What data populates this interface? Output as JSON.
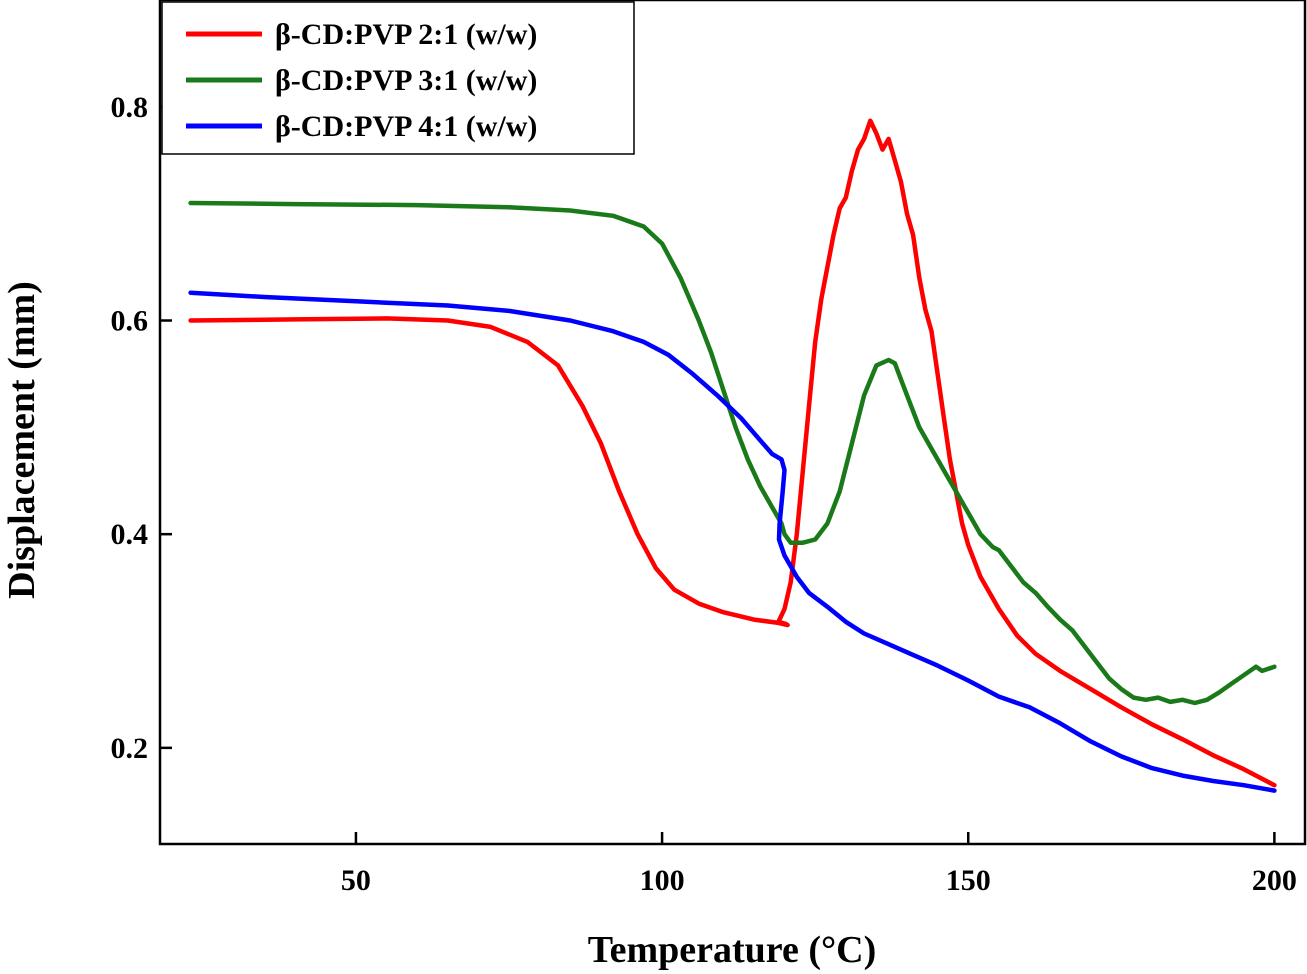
{
  "chart_data": {
    "type": "line",
    "title": "",
    "xlabel": "Temperature (°C)",
    "ylabel": "Displacement (mm)",
    "xlim": [
      18,
      205
    ],
    "ylim": [
      0.11,
      0.9
    ],
    "xticks": [
      50,
      100,
      150,
      200
    ],
    "yticks": [
      0.2,
      0.4,
      0.6,
      0.8
    ],
    "xtick_labels": [
      "50",
      "100",
      "150",
      "200"
    ],
    "ytick_labels": [
      "0.2",
      "0.4",
      "0.6",
      "0.8"
    ],
    "grid": false,
    "legend_position": "top-left",
    "series": [
      {
        "name": "β-CD:PVP 2:1 (w/w)",
        "color": "#ff0000",
        "points": [
          [
            23,
            0.6
          ],
          [
            40,
            0.601
          ],
          [
            55,
            0.602
          ],
          [
            65,
            0.6
          ],
          [
            72,
            0.594
          ],
          [
            78,
            0.58
          ],
          [
            83,
            0.558
          ],
          [
            87,
            0.52
          ],
          [
            90,
            0.485
          ],
          [
            93,
            0.44
          ],
          [
            96,
            0.4
          ],
          [
            99,
            0.368
          ],
          [
            102,
            0.348
          ],
          [
            106,
            0.335
          ],
          [
            110,
            0.327
          ],
          [
            115,
            0.32
          ],
          [
            119,
            0.317
          ],
          [
            120.5,
            0.315
          ],
          [
            120.2,
            0.316
          ],
          [
            119,
            0.318
          ],
          [
            120,
            0.33
          ],
          [
            121,
            0.355
          ],
          [
            122,
            0.4
          ],
          [
            123,
            0.46
          ],
          [
            124,
            0.52
          ],
          [
            125,
            0.58
          ],
          [
            126,
            0.62
          ],
          [
            128,
            0.68
          ],
          [
            129,
            0.705
          ],
          [
            130,
            0.715
          ],
          [
            131,
            0.74
          ],
          [
            132,
            0.76
          ],
          [
            133,
            0.77
          ],
          [
            134,
            0.787
          ],
          [
            135,
            0.775
          ],
          [
            136,
            0.76
          ],
          [
            137,
            0.77
          ],
          [
            138,
            0.75
          ],
          [
            139,
            0.73
          ],
          [
            140,
            0.7
          ],
          [
            141,
            0.68
          ],
          [
            142,
            0.64
          ],
          [
            143,
            0.61
          ],
          [
            144,
            0.59
          ],
          [
            145,
            0.55
          ],
          [
            146,
            0.51
          ],
          [
            147,
            0.47
          ],
          [
            148,
            0.44
          ],
          [
            149,
            0.41
          ],
          [
            150,
            0.39
          ],
          [
            152,
            0.36
          ],
          [
            155,
            0.33
          ],
          [
            158,
            0.305
          ],
          [
            161,
            0.288
          ],
          [
            165,
            0.272
          ],
          [
            170,
            0.255
          ],
          [
            175,
            0.238
          ],
          [
            180,
            0.222
          ],
          [
            185,
            0.208
          ],
          [
            190,
            0.193
          ],
          [
            195,
            0.18
          ],
          [
            200,
            0.165
          ]
        ]
      },
      {
        "name": "β-CD:PVP 3:1 (w/w)",
        "color": "#1a7a1a",
        "points": [
          [
            23,
            0.71
          ],
          [
            40,
            0.709
          ],
          [
            60,
            0.708
          ],
          [
            75,
            0.706
          ],
          [
            85,
            0.703
          ],
          [
            92,
            0.698
          ],
          [
            97,
            0.688
          ],
          [
            100,
            0.672
          ],
          [
            103,
            0.64
          ],
          [
            106,
            0.6
          ],
          [
            108,
            0.57
          ],
          [
            110,
            0.535
          ],
          [
            112,
            0.5
          ],
          [
            114,
            0.47
          ],
          [
            116,
            0.445
          ],
          [
            118,
            0.425
          ],
          [
            119.5,
            0.41
          ],
          [
            120,
            0.4
          ],
          [
            121,
            0.392
          ],
          [
            123,
            0.392
          ],
          [
            125,
            0.395
          ],
          [
            127,
            0.41
          ],
          [
            129,
            0.44
          ],
          [
            131,
            0.485
          ],
          [
            133,
            0.53
          ],
          [
            135,
            0.558
          ],
          [
            137,
            0.563
          ],
          [
            138,
            0.56
          ],
          [
            140,
            0.53
          ],
          [
            142,
            0.5
          ],
          [
            144,
            0.48
          ],
          [
            146,
            0.46
          ],
          [
            148,
            0.44
          ],
          [
            150,
            0.42
          ],
          [
            152,
            0.4
          ],
          [
            154,
            0.388
          ],
          [
            155,
            0.385
          ],
          [
            157,
            0.37
          ],
          [
            159,
            0.355
          ],
          [
            161,
            0.345
          ],
          [
            163,
            0.332
          ],
          [
            165,
            0.32
          ],
          [
            167,
            0.31
          ],
          [
            169,
            0.295
          ],
          [
            171,
            0.28
          ],
          [
            173,
            0.265
          ],
          [
            175,
            0.255
          ],
          [
            177,
            0.247
          ],
          [
            179,
            0.245
          ],
          [
            181,
            0.247
          ],
          [
            183,
            0.243
          ],
          [
            185,
            0.245
          ],
          [
            187,
            0.242
          ],
          [
            189,
            0.245
          ],
          [
            191,
            0.252
          ],
          [
            193,
            0.26
          ],
          [
            195,
            0.268
          ],
          [
            197,
            0.276
          ],
          [
            198,
            0.272
          ],
          [
            200,
            0.276
          ]
        ]
      },
      {
        "name": "β-CD:PVP 4:1 (w/w)",
        "color": "#0000ff",
        "points": [
          [
            23,
            0.626
          ],
          [
            35,
            0.622
          ],
          [
            50,
            0.618
          ],
          [
            65,
            0.614
          ],
          [
            75,
            0.609
          ],
          [
            85,
            0.6
          ],
          [
            92,
            0.59
          ],
          [
            97,
            0.58
          ],
          [
            101,
            0.568
          ],
          [
            105,
            0.55
          ],
          [
            109,
            0.53
          ],
          [
            113,
            0.508
          ],
          [
            116,
            0.488
          ],
          [
            118,
            0.475
          ],
          [
            119.5,
            0.47
          ],
          [
            120,
            0.46
          ],
          [
            119.7,
            0.44
          ],
          [
            119.2,
            0.41
          ],
          [
            119.1,
            0.395
          ],
          [
            120,
            0.38
          ],
          [
            121,
            0.37
          ],
          [
            122,
            0.36
          ],
          [
            124,
            0.345
          ],
          [
            127,
            0.332
          ],
          [
            130,
            0.318
          ],
          [
            133,
            0.307
          ],
          [
            137,
            0.297
          ],
          [
            141,
            0.287
          ],
          [
            145,
            0.277
          ],
          [
            150,
            0.263
          ],
          [
            155,
            0.248
          ],
          [
            160,
            0.238
          ],
          [
            165,
            0.223
          ],
          [
            170,
            0.206
          ],
          [
            175,
            0.192
          ],
          [
            180,
            0.181
          ],
          [
            185,
            0.174
          ],
          [
            190,
            0.169
          ],
          [
            195,
            0.165
          ],
          [
            200,
            0.16
          ]
        ]
      }
    ]
  }
}
